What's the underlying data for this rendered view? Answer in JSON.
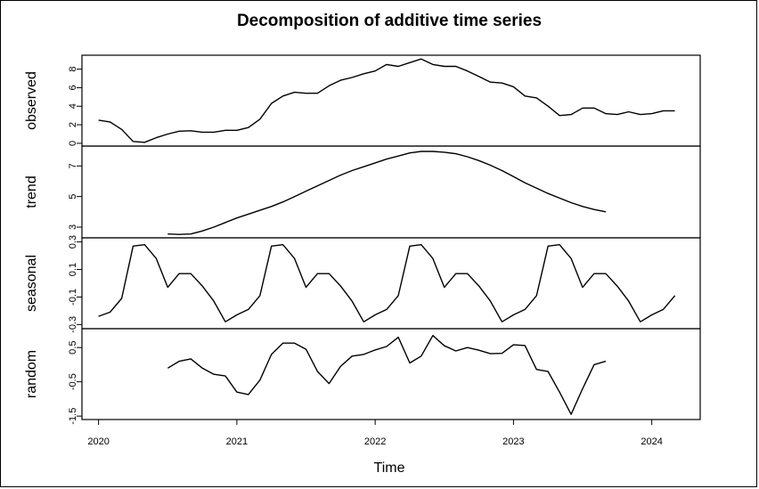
{
  "chart_data": {
    "type": "line",
    "title": "Decomposition of additive time series",
    "xlabel": "Time",
    "xlim": [
      2019.88,
      2024.35
    ],
    "xticks": [
      2020,
      2021,
      2022,
      2023,
      2024
    ],
    "xtick_labels": [
      "2020",
      "2021",
      "2022",
      "2023",
      "2024"
    ],
    "panels": [
      {
        "name": "observed",
        "ylim": [
          -0.3,
          9.5
        ],
        "yticks": [
          0,
          2,
          4,
          6,
          8
        ],
        "ytick_labels": [
          "0",
          "2",
          "4",
          "6",
          "8"
        ],
        "x": [
          2020.0,
          2020.083,
          2020.167,
          2020.25,
          2020.333,
          2020.417,
          2020.5,
          2020.583,
          2020.667,
          2020.75,
          2020.833,
          2020.917,
          2021.0,
          2021.083,
          2021.167,
          2021.25,
          2021.333,
          2021.417,
          2021.5,
          2021.583,
          2021.667,
          2021.75,
          2021.833,
          2021.917,
          2022.0,
          2022.083,
          2022.167,
          2022.25,
          2022.333,
          2022.417,
          2022.5,
          2022.583,
          2022.667,
          2022.75,
          2022.833,
          2022.917,
          2023.0,
          2023.083,
          2023.167,
          2023.25,
          2023.333,
          2023.417,
          2023.5,
          2023.583,
          2023.667,
          2023.75,
          2023.833,
          2023.917,
          2024.0,
          2024.083,
          2024.167
        ],
        "values": [
          2.5,
          2.3,
          1.5,
          0.2,
          0.1,
          0.6,
          1.0,
          1.3,
          1.35,
          1.2,
          1.2,
          1.4,
          1.4,
          1.7,
          2.6,
          4.3,
          5.1,
          5.5,
          5.4,
          5.4,
          6.2,
          6.8,
          7.1,
          7.5,
          7.8,
          8.5,
          8.3,
          8.7,
          9.1,
          8.5,
          8.3,
          8.3,
          7.8,
          7.2,
          6.6,
          6.5,
          6.1,
          5.1,
          4.9,
          4.0,
          3.0,
          3.1,
          3.8,
          3.8,
          3.2,
          3.1,
          3.4,
          3.1,
          3.2,
          3.5,
          3.5
        ]
      },
      {
        "name": "trend",
        "ylim": [
          2.3,
          8.3
        ],
        "yticks": [
          3,
          5,
          7
        ],
        "ytick_labels": [
          "3",
          "5",
          "7"
        ],
        "x": [
          2020.5,
          2020.583,
          2020.667,
          2020.75,
          2020.833,
          2020.917,
          2021.0,
          2021.083,
          2021.167,
          2021.25,
          2021.333,
          2021.417,
          2021.5,
          2021.583,
          2021.667,
          2021.75,
          2021.833,
          2021.917,
          2022.0,
          2022.083,
          2022.167,
          2022.25,
          2022.333,
          2022.417,
          2022.5,
          2022.583,
          2022.667,
          2022.75,
          2022.833,
          2022.917,
          2023.0,
          2023.083,
          2023.167,
          2023.25,
          2023.333,
          2023.417,
          2023.5,
          2023.583,
          2023.667
        ],
        "values": [
          2.55,
          2.52,
          2.55,
          2.75,
          3.0,
          3.3,
          3.6,
          3.85,
          4.1,
          4.35,
          4.65,
          5.0,
          5.35,
          5.7,
          6.05,
          6.4,
          6.7,
          6.95,
          7.2,
          7.45,
          7.65,
          7.85,
          7.95,
          7.95,
          7.9,
          7.8,
          7.6,
          7.35,
          7.05,
          6.7,
          6.3,
          5.9,
          5.55,
          5.2,
          4.9,
          4.6,
          4.35,
          4.15,
          4.0
        ]
      },
      {
        "name": "seasonal",
        "ylim": [
          -0.33,
          0.33
        ],
        "yticks": [
          -0.3,
          -0.1,
          0.1,
          0.3
        ],
        "ytick_labels": [
          "-0.3",
          "-0.1",
          "0.1",
          "0.3"
        ],
        "x": [
          2020.0,
          2020.083,
          2020.167,
          2020.25,
          2020.333,
          2020.417,
          2020.5,
          2020.583,
          2020.667,
          2020.75,
          2020.833,
          2020.917,
          2021.0,
          2021.083,
          2021.167,
          2021.25,
          2021.333,
          2021.417,
          2021.5,
          2021.583,
          2021.667,
          2021.75,
          2021.833,
          2021.917,
          2022.0,
          2022.083,
          2022.167,
          2022.25,
          2022.333,
          2022.417,
          2022.5,
          2022.583,
          2022.667,
          2022.75,
          2022.833,
          2022.917,
          2023.0,
          2023.083,
          2023.167,
          2023.25,
          2023.333,
          2023.417,
          2023.5,
          2023.583,
          2023.667,
          2023.75,
          2023.833,
          2023.917,
          2024.0,
          2024.083,
          2024.167
        ],
        "values": [
          -0.24,
          -0.21,
          -0.11,
          0.27,
          0.28,
          0.18,
          -0.03,
          0.07,
          0.07,
          -0.02,
          -0.13,
          -0.28,
          -0.23,
          -0.19,
          -0.09,
          0.27,
          0.28,
          0.18,
          -0.03,
          0.07,
          0.07,
          -0.02,
          -0.13,
          -0.28,
          -0.23,
          -0.19,
          -0.09,
          0.27,
          0.28,
          0.18,
          -0.03,
          0.07,
          0.07,
          -0.02,
          -0.13,
          -0.28,
          -0.23,
          -0.19,
          -0.09,
          0.27,
          0.28,
          0.18,
          -0.03,
          0.07,
          0.07,
          -0.02,
          -0.13,
          -0.28,
          -0.23,
          -0.19,
          -0.09
        ]
      },
      {
        "name": "random",
        "ylim": [
          -1.6,
          1.05
        ],
        "yticks": [
          -1.5,
          -0.5,
          0.5
        ],
        "ytick_labels": [
          "-1.5",
          "-0.5",
          "0.5"
        ],
        "x": [
          2020.5,
          2020.583,
          2020.667,
          2020.75,
          2020.833,
          2020.917,
          2021.0,
          2021.083,
          2021.167,
          2021.25,
          2021.333,
          2021.417,
          2021.5,
          2021.583,
          2021.667,
          2021.75,
          2021.833,
          2021.917,
          2022.0,
          2022.083,
          2022.167,
          2022.25,
          2022.333,
          2022.417,
          2022.5,
          2022.583,
          2022.667,
          2022.75,
          2022.833,
          2022.917,
          2023.0,
          2023.083,
          2023.167,
          2023.25,
          2023.333,
          2023.417,
          2023.5,
          2023.583,
          2023.667
        ],
        "values": [
          -0.1,
          0.1,
          0.17,
          -0.1,
          -0.28,
          -0.33,
          -0.8,
          -0.87,
          -0.45,
          0.3,
          0.63,
          0.63,
          0.45,
          -0.2,
          -0.55,
          -0.05,
          0.25,
          0.3,
          0.43,
          0.53,
          0.8,
          0.05,
          0.25,
          0.85,
          0.55,
          0.4,
          0.5,
          0.42,
          0.32,
          0.33,
          0.58,
          0.56,
          -0.14,
          -0.2,
          -0.8,
          -1.45,
          -0.7,
          0.0,
          0.1
        ]
      }
    ]
  }
}
